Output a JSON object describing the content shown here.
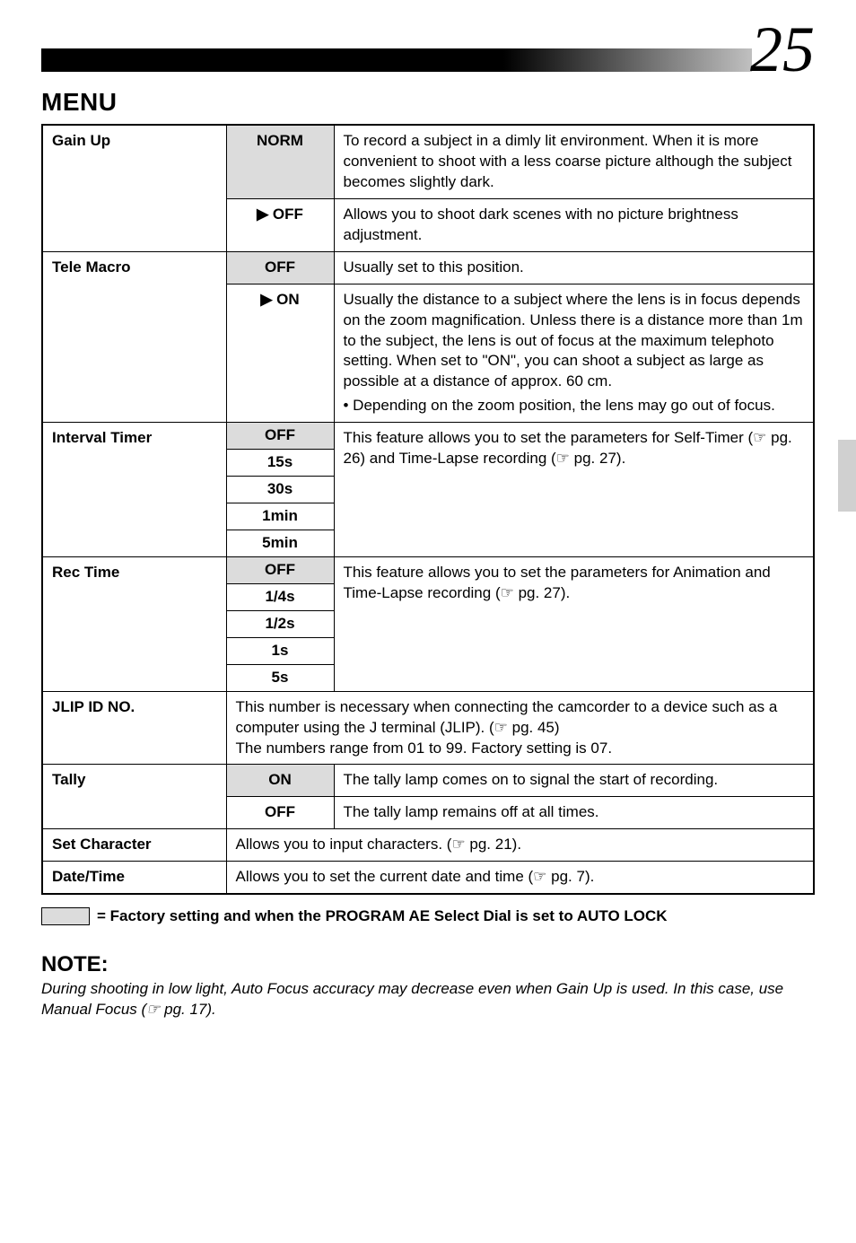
{
  "page": {
    "number": "25",
    "menu_label": "MENU"
  },
  "colors": {
    "factory_bg": "#dcdcdc",
    "border": "#000000",
    "header_gradient_start": "#000000",
    "header_gradient_end": "#c0c0c0",
    "side_tab": "#d0d0d0",
    "background": "#ffffff"
  },
  "rows": {
    "gain_up": {
      "param": "Gain Up",
      "opt1": "NORM",
      "desc1": "To record a subject in a dimly lit environment. When it is more convenient to shoot with a less coarse picture although the subject becomes slightly dark.",
      "opt2": "▶ OFF",
      "desc2": "Allows you to shoot dark scenes with no picture brightness adjustment."
    },
    "tele_macro": {
      "param": "Tele Macro",
      "opt1": "OFF",
      "desc1": "Usually set to this position.",
      "opt2": "▶ ON",
      "desc2a": "Usually the distance to a subject where the lens is in focus depends on the zoom magnification. Unless there is a distance more than 1m to the subject, the lens is out of focus at the maximum telephoto setting. When set to \"ON\", you can shoot a subject as large as possible at a distance of approx. 60 cm.",
      "desc2b": "• Depending on the zoom position, the lens may go out of focus."
    },
    "interval_timer": {
      "param": "Interval Timer",
      "opts": [
        "OFF",
        "15s",
        "30s",
        "1min",
        "5min"
      ],
      "factory_index": 0,
      "desc": "This feature allows you to set the parameters for Self-Timer (☞ pg. 26) and Time-Lapse recording (☞ pg. 27)."
    },
    "rec_time": {
      "param": "Rec Time",
      "opts": [
        "OFF",
        "1/4s",
        "1/2s",
        "1s",
        "5s"
      ],
      "factory_index": 0,
      "desc": "This feature allows you to set the parameters for Animation and Time-Lapse recording (☞ pg. 27)."
    },
    "jlip": {
      "param": "JLIP ID NO.",
      "desc": "This number is necessary when connecting the camcorder to a device such as a computer using the J terminal (JLIP). (☞ pg. 45)\nThe numbers range from 01 to 99. Factory setting is 07."
    },
    "tally": {
      "param": "Tally",
      "opt1": "ON",
      "desc1": "The tally lamp comes on to signal the start of recording.",
      "opt2": "OFF",
      "desc2": "The tally lamp remains off at all times."
    },
    "set_char": {
      "param": "Set Character",
      "desc": "Allows you to input characters. (☞ pg. 21)."
    },
    "date_time": {
      "param": "Date/Time",
      "desc": "Allows you to set the current date and time (☞ pg. 7)."
    }
  },
  "legend": "= Factory setting and when the PROGRAM AE Select Dial is set to AUTO LOCK",
  "note": {
    "heading": "NOTE:",
    "body": "During shooting in low light, Auto Focus accuracy may decrease even when Gain Up is used. In this case, use Manual Focus (☞ pg. 17)."
  }
}
